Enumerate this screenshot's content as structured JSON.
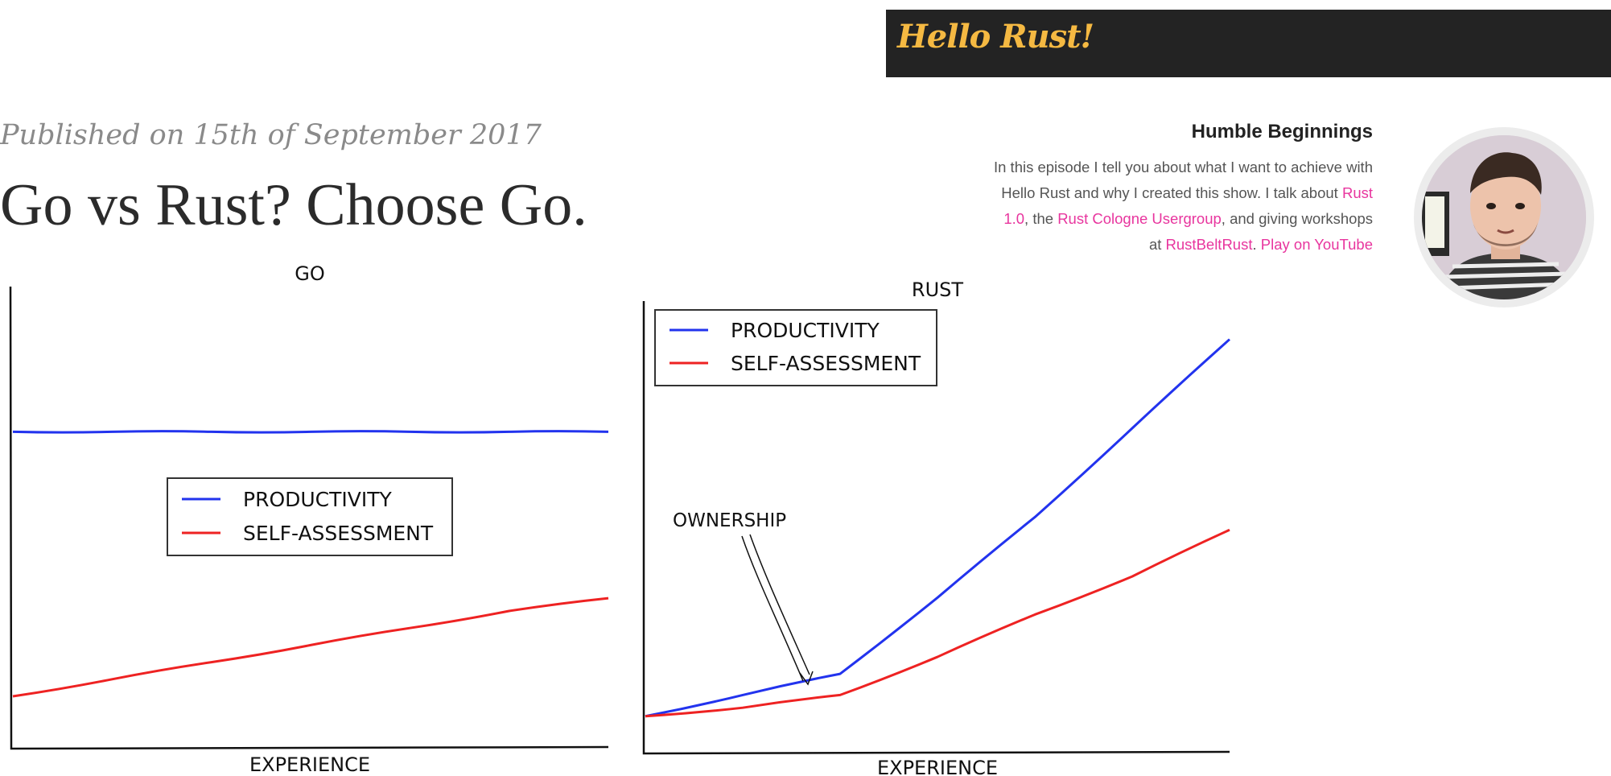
{
  "banner": {
    "title": "Hello Rust!",
    "background": "#232323",
    "title_color": "#f5b942"
  },
  "post": {
    "published": "Published on 15th of September 2017",
    "title": "Go vs Rust? Choose Go."
  },
  "episode": {
    "title": "Humble Beginnings",
    "desc": {
      "t1": "In this episode I tell you about what I want to achieve with Hello Rust and why I created this show. I talk about ",
      "link1": "Rust 1.0",
      "t2": ", the ",
      "link2": "Rust Cologne Usergroup",
      "t3": ", and giving workshops at ",
      "link3": "RustBeltRust",
      "t4": ". ",
      "link4": "Play on YouTube"
    },
    "link_color": "#e8359e",
    "avatar_icon": "host-portrait"
  },
  "chart_data": [
    {
      "type": "line",
      "title": "GO",
      "xlabel": "EXPERIENCE",
      "ylabel": "",
      "legend_position": "center",
      "series": [
        {
          "name": "PRODUCTIVITY",
          "color": "#2233ee",
          "values": [
            0.72,
            0.72,
            0.72,
            0.72,
            0.72,
            0.72,
            0.72
          ]
        },
        {
          "name": "SELF-ASSESSMENT",
          "color": "#ee2222",
          "values": [
            0.1,
            0.14,
            0.18,
            0.22,
            0.26,
            0.3,
            0.33
          ]
        }
      ],
      "x": [
        0,
        1,
        2,
        3,
        4,
        5,
        6
      ]
    },
    {
      "type": "line",
      "title": "RUST",
      "xlabel": "EXPERIENCE",
      "ylabel": "",
      "legend_position": "top-left",
      "annotation": "OWNERSHIP",
      "series": [
        {
          "name": "PRODUCTIVITY",
          "color": "#2233ee",
          "values": [
            0.05,
            0.1,
            0.15,
            0.33,
            0.52,
            0.73,
            0.94
          ]
        },
        {
          "name": "SELF-ASSESSMENT",
          "color": "#ee2222",
          "values": [
            0.05,
            0.07,
            0.1,
            0.19,
            0.29,
            0.38,
            0.49
          ]
        }
      ],
      "x": [
        0,
        1,
        2,
        3,
        4,
        5,
        6
      ]
    }
  ]
}
